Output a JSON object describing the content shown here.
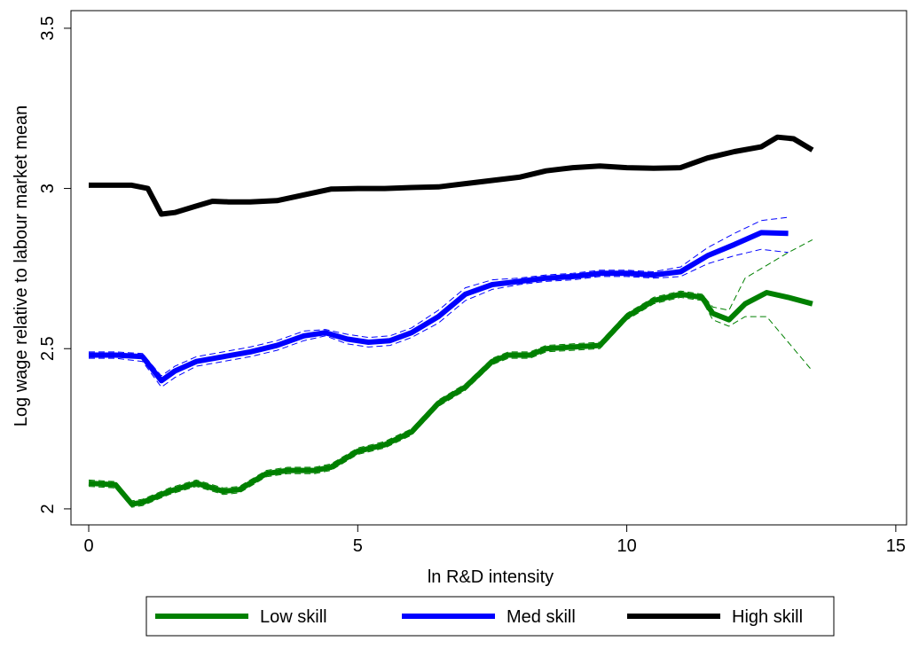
{
  "chart_data": {
    "type": "line",
    "xlabel": "ln R&D intensity",
    "ylabel": "Log wage relative to labour market mean",
    "xlim": [
      -0.33,
      15.2
    ],
    "xticks": [
      0,
      5,
      10,
      15
    ],
    "ylim": [
      1.95,
      3.555
    ],
    "yticks": [
      2,
      2.5,
      3,
      3.5
    ],
    "legend": "bottom",
    "series": [
      {
        "name": "Low skill",
        "color": "#008000",
        "x": [
          0,
          0.5,
          0.8,
          1,
          1.5,
          2,
          2.5,
          2.8,
          3.3,
          3.7,
          4.2,
          4.5,
          5,
          5.5,
          6,
          6.5,
          7,
          7.5,
          7.8,
          8.2,
          8.5,
          9,
          9.5,
          10,
          10.5,
          11,
          11.4,
          11.6,
          11.9,
          12.2,
          12.6,
          13,
          13.45
        ],
        "values": [
          2.08,
          2.075,
          2.015,
          2.02,
          2.055,
          2.08,
          2.055,
          2.06,
          2.11,
          2.12,
          2.12,
          2.13,
          2.18,
          2.2,
          2.24,
          2.33,
          2.38,
          2.46,
          2.48,
          2.48,
          2.5,
          2.505,
          2.51,
          2.6,
          2.65,
          2.67,
          2.66,
          2.61,
          2.59,
          2.64,
          2.675,
          2.66,
          2.64
        ],
        "ci_lower": [
          2.07,
          2.065,
          2.005,
          2.01,
          2.045,
          2.07,
          2.045,
          2.05,
          2.1,
          2.11,
          2.11,
          2.12,
          2.17,
          2.19,
          2.23,
          2.32,
          2.37,
          2.45,
          2.47,
          2.47,
          2.49,
          2.495,
          2.5,
          2.59,
          2.64,
          2.66,
          2.65,
          2.59,
          2.57,
          2.6,
          2.6,
          2.52,
          2.43
        ],
        "ci_upper": [
          2.09,
          2.085,
          2.025,
          2.03,
          2.065,
          2.09,
          2.065,
          2.07,
          2.12,
          2.13,
          2.13,
          2.14,
          2.19,
          2.21,
          2.25,
          2.34,
          2.39,
          2.47,
          2.49,
          2.49,
          2.51,
          2.515,
          2.52,
          2.61,
          2.66,
          2.68,
          2.67,
          2.63,
          2.62,
          2.72,
          2.76,
          2.8,
          2.84
        ]
      },
      {
        "name": "Med skill",
        "color": "#0000ff",
        "x": [
          0,
          0.5,
          1,
          1.35,
          1.6,
          2,
          2.5,
          3,
          3.5,
          4,
          4.4,
          4.8,
          5.2,
          5.6,
          6,
          6.5,
          7,
          7.5,
          8,
          8.5,
          9,
          9.5,
          10,
          10.5,
          11,
          11.5,
          12,
          12.5,
          13
        ],
        "values": [
          2.48,
          2.48,
          2.475,
          2.4,
          2.43,
          2.46,
          2.475,
          2.49,
          2.51,
          2.54,
          2.55,
          2.53,
          2.52,
          2.525,
          2.55,
          2.6,
          2.67,
          2.7,
          2.71,
          2.72,
          2.725,
          2.735,
          2.735,
          2.73,
          2.74,
          2.79,
          2.825,
          2.862,
          2.86
        ],
        "ci_lower": [
          2.47,
          2.47,
          2.46,
          2.38,
          2.41,
          2.445,
          2.46,
          2.475,
          2.495,
          2.525,
          2.54,
          2.515,
          2.505,
          2.51,
          2.535,
          2.58,
          2.65,
          2.685,
          2.7,
          2.71,
          2.715,
          2.725,
          2.725,
          2.72,
          2.725,
          2.765,
          2.79,
          2.81,
          2.8
        ],
        "ci_upper": [
          2.49,
          2.49,
          2.485,
          2.415,
          2.445,
          2.475,
          2.49,
          2.505,
          2.525,
          2.555,
          2.56,
          2.545,
          2.535,
          2.54,
          2.565,
          2.62,
          2.69,
          2.715,
          2.72,
          2.73,
          2.735,
          2.745,
          2.745,
          2.74,
          2.755,
          2.815,
          2.86,
          2.9,
          2.91
        ]
      },
      {
        "name": "High skill",
        "color": "#000000",
        "x": [
          0,
          0.5,
          0.8,
          1.1,
          1.35,
          1.6,
          2,
          2.3,
          2.6,
          3,
          3.5,
          4,
          4.5,
          5,
          5.5,
          6,
          6.5,
          7,
          7.5,
          8,
          8.5,
          9,
          9.5,
          10,
          10.5,
          11,
          11.5,
          12,
          12.5,
          12.8,
          13.1,
          13.45
        ],
        "values": [
          3.01,
          3.01,
          3.01,
          3.0,
          2.92,
          2.925,
          2.945,
          2.96,
          2.958,
          2.958,
          2.962,
          2.98,
          2.998,
          3.0,
          3.0,
          3.003,
          3.005,
          3.015,
          3.025,
          3.035,
          3.055,
          3.065,
          3.07,
          3.065,
          3.063,
          3.065,
          3.095,
          3.115,
          3.13,
          3.16,
          3.155,
          3.12
        ]
      }
    ]
  }
}
